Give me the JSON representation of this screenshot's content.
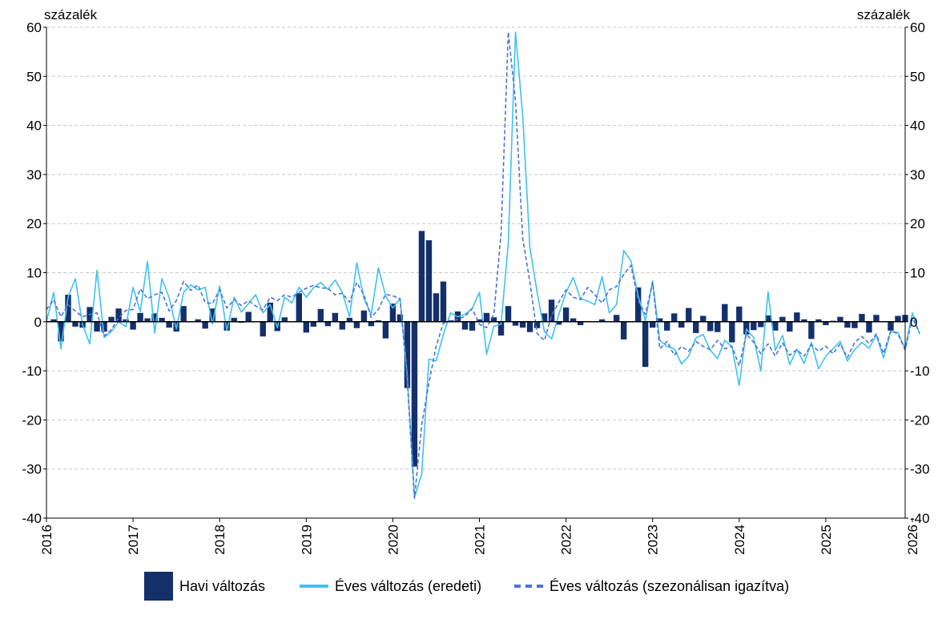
{
  "chart_data": {
    "type": "bar+line",
    "unit_left": "százalék",
    "unit_right": "százalék",
    "ylim": [
      -40,
      60
    ],
    "yticks": [
      -40,
      -30,
      -20,
      -10,
      0,
      10,
      20,
      30,
      40,
      50,
      60
    ],
    "x_start": "2016-01",
    "x_end": "2026-01",
    "x_tick_labels": [
      "2016",
      "2017",
      "2018",
      "2019",
      "2020",
      "2021",
      "2022",
      "2023",
      "2024",
      "2025",
      "2026"
    ],
    "grid": "horizontal-dashed",
    "legend_position": "bottom",
    "colors": {
      "bars": "#14306b",
      "line_original": "#3fc1f0",
      "line_sa": "#4a73d6"
    },
    "series": [
      {
        "name": "Havi változás",
        "type": "bar",
        "values": [
          0,
          0.5,
          -4,
          5.5,
          -1,
          -1.2,
          3,
          -2,
          -2,
          1,
          2.7,
          0.5,
          -1.6,
          1.8,
          0.7,
          1.7,
          0.8,
          -1.2,
          -2,
          3.2,
          0,
          0.5,
          -1.4,
          2.7,
          0,
          -1.8,
          0.8,
          -0.2,
          2,
          0,
          -3,
          3.9,
          -1.9,
          0.9,
          0,
          5.8,
          -2.2,
          -1,
          2.6,
          -0.9,
          1.8,
          -1.6,
          0.8,
          -1.3,
          2.3,
          -0.9,
          0.3,
          -3.4,
          3.7,
          1.5,
          -13.5,
          -29.5,
          18.5,
          16.6,
          5.8,
          8.2,
          0.3,
          2.1,
          -1.6,
          -1.8,
          0.5,
          1.8,
          0.9,
          -2.8,
          3.2,
          -0.8,
          -1.2,
          -2.1,
          -1.3,
          1.7,
          4.5,
          -0.6,
          2.9,
          0.7,
          -0.7,
          0,
          0.1,
          0.5,
          0,
          1.4,
          -3.6,
          0,
          7,
          -9.2,
          -1.2,
          0.7,
          -1.8,
          1.7,
          -1.2,
          2.8,
          -2.3,
          1.2,
          -1.9,
          -2.1,
          3.6,
          -4.2,
          3.1,
          -2.6,
          -1.7,
          -1.1,
          1.3,
          -1.8,
          1,
          -2,
          1.9,
          0.5,
          -3.5,
          0.5,
          -0.7,
          0.2,
          1,
          -1.2,
          -1.3,
          1.6,
          -2.2,
          1.4,
          0,
          -1.8,
          1.2,
          1.4
        ]
      },
      {
        "name": "Éves változás (eredeti)",
        "type": "line",
        "values": [
          0,
          6,
          -5.5,
          5,
          8.8,
          -0.6,
          -4.5,
          10.5,
          -3.2,
          -2,
          0,
          -1,
          7,
          2.1,
          12.3,
          -2.3,
          8.8,
          4.9,
          -1.5,
          6,
          7.5,
          6.5,
          7,
          -0.5,
          7.3,
          -1.8,
          5,
          2,
          3.7,
          5.5,
          1.8,
          3.5,
          -1.2,
          5,
          3.8,
          7,
          5,
          6.9,
          8,
          6.6,
          8.5,
          6,
          1,
          12,
          4.7,
          1.5,
          11,
          5.3,
          2.8,
          4.7,
          -11,
          -35.8,
          -31,
          -7.6,
          -8,
          -2.6,
          1.8,
          1,
          1.5,
          2.7,
          6,
          -6.6,
          -0.9,
          -0.5,
          16,
          59,
          42,
          15,
          6,
          -2,
          -3.5,
          1.5,
          6,
          9,
          4.7,
          4.2,
          3.5,
          9.2,
          1.8,
          3.5,
          14.5,
          12.4,
          5.3,
          0.2,
          8.3,
          -3.8,
          -5,
          -5.5,
          -8.6,
          -7,
          -3.3,
          -2.6,
          -5.8,
          -7.5,
          -3.8,
          -5.1,
          -13,
          -1.5,
          -3.2,
          -10,
          6.1,
          -5.8,
          -2.8,
          -8.7,
          -5.6,
          -8.5,
          -4.2,
          -9.6,
          -7,
          -5.5,
          -4,
          -8,
          -5.7,
          -4.2,
          -5.4,
          -2.7,
          -7.4,
          -2,
          -2.2,
          -5.5,
          1.8,
          -2.5
        ]
      },
      {
        "name": "Éves változás (szezonálisan igazítva)",
        "type": "line",
        "values": [
          2.5,
          4.5,
          1,
          3.5,
          2.2,
          1,
          1.5,
          1.8,
          -2.9,
          -1.6,
          0.8,
          2.3,
          2.5,
          6.7,
          4.7,
          5.5,
          6,
          2.2,
          4.3,
          8.2,
          6.4,
          7.5,
          3.9,
          3.7,
          6.5,
          2.8,
          4.5,
          3.3,
          4.3,
          3.2,
          2.4,
          5,
          4.3,
          5.5,
          5,
          6,
          6.8,
          7.4,
          6.9,
          6.8,
          5.5,
          5.8,
          4,
          8,
          5.5,
          0.9,
          2.5,
          5.6,
          5.3,
          4.7,
          -12,
          -36,
          -21,
          -12.5,
          -5,
          -0.3,
          0.1,
          0.5,
          1.1,
          2.7,
          -0.5,
          -1.2,
          1.5,
          18,
          59,
          45,
          17,
          8,
          -2.4,
          -3.8,
          1.2,
          4,
          6.5,
          5,
          4.5,
          7,
          5.5,
          3.8,
          6.5,
          7.2,
          9.6,
          11.5,
          4.3,
          1.5,
          8,
          -5.5,
          -4,
          -6.8,
          -5,
          -6,
          -4,
          -5,
          -5.7,
          -3.8,
          -5.5,
          -5,
          -9,
          -2.5,
          -4.2,
          -6.5,
          -4.5,
          -7,
          -4.3,
          -6.8,
          -5.7,
          -7,
          -4.7,
          -6,
          -5,
          -6.5,
          -4.5,
          -7.3,
          -4.2,
          -3,
          -4.4,
          -2.5,
          -6.5,
          -1.8,
          -2.5,
          -5.7,
          0.8,
          -2.3
        ]
      }
    ]
  },
  "legend": {
    "bar_label": "Havi változás",
    "line_label": "Éves változás (eredeti)",
    "dash_label": "Éves változás (szezonálisan igazítva)"
  }
}
